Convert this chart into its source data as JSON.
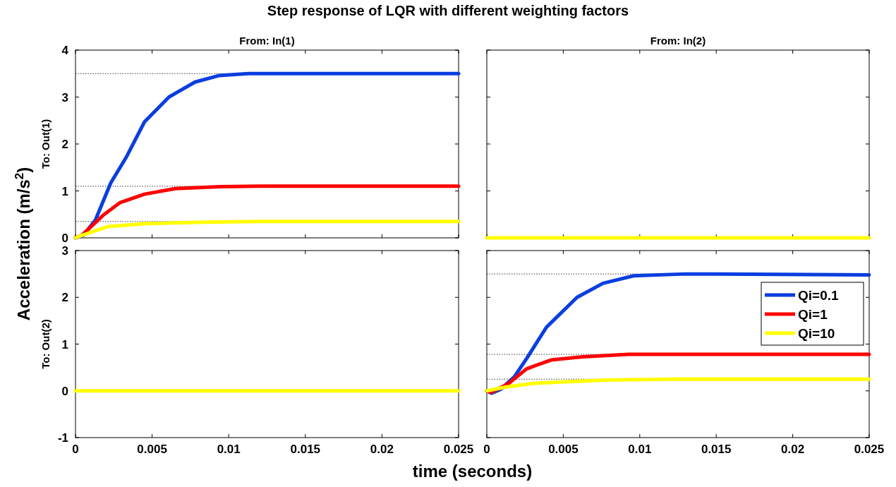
{
  "chart_data": [
    {
      "type": "line",
      "title": "Step response of LQR with different weighting factors",
      "subtitle": "From: In(1)",
      "ylabel": "To: Out(1)",
      "annotations": [
        "Acceleration (m/s$^{2}$)"
      ],
      "xlim": [
        0,
        0.025
      ],
      "xticks": [
        0,
        0.005,
        0.01,
        0.015,
        0.02,
        0.025
      ],
      "ylim": [
        0,
        4
      ],
      "yticks": [
        0,
        1,
        2,
        3,
        4
      ],
      "tick_labels": "y",
      "line_style": "solid",
      "legend": false,
      "ref_lines": [
        {
          "axis": "y",
          "value": 3.5,
          "color": "#000000",
          "line_style": "dotted"
        },
        {
          "axis": "y",
          "value": 1.1,
          "color": "#000000",
          "line_style": "dotted"
        },
        {
          "axis": "y",
          "value": 0.35,
          "color": "#000000",
          "line_style": "dotted"
        }
      ],
      "series": [
        {
          "color": "#0a3ee0",
          "x": [
            0,
            0.0005,
            0.0013,
            0.0023,
            0.0033,
            0.0045,
            0.0061,
            0.0078,
            0.0094,
            0.0113,
            0.015,
            0.025
          ],
          "values": [
            0,
            0.05,
            0.38,
            1.17,
            1.71,
            2.47,
            3.0,
            3.32,
            3.46,
            3.5,
            3.5,
            3.5
          ]
        },
        {
          "color": "#ff0000",
          "x": [
            0,
            0.0004,
            0.0018,
            0.0029,
            0.0045,
            0.0065,
            0.0094,
            0.012,
            0.025
          ],
          "values": [
            0,
            0.05,
            0.48,
            0.75,
            0.93,
            1.05,
            1.09,
            1.1,
            1.1
          ]
        },
        {
          "color": "#ffff00",
          "x": [
            0,
            0.0004,
            0.0021,
            0.0045,
            0.0078,
            0.012,
            0.025
          ],
          "values": [
            0,
            0.05,
            0.24,
            0.3,
            0.33,
            0.35,
            0.35
          ]
        }
      ]
    },
    {
      "type": "line",
      "subtitle": "From: In(2)",
      "xlim": [
        0,
        0.025
      ],
      "xticks": [
        0,
        0.005,
        0.01,
        0.015,
        0.02,
        0.025
      ],
      "ylim": [
        0,
        4
      ],
      "yticks": [
        0,
        1,
        2,
        3,
        4
      ],
      "tick_labels": false,
      "line_style": "solid",
      "legend": false,
      "series": [
        {
          "color": "#ffff00",
          "x": [
            0,
            0.025
          ],
          "values": [
            0,
            0
          ]
        }
      ]
    },
    {
      "type": "line",
      "ylabel": "To: Out(2)",
      "xlabel": "time (seconds)",
      "xlim": [
        0,
        0.025
      ],
      "xticks": [
        0,
        0.005,
        0.01,
        0.015,
        0.02,
        0.025
      ],
      "ylim": [
        -1,
        3
      ],
      "yticks": [
        -1,
        0,
        1,
        2,
        3
      ],
      "line_style": "solid",
      "legend": false,
      "series": [
        {
          "color": "#ffff00",
          "x": [
            0,
            0.025
          ],
          "values": [
            0,
            0
          ]
        }
      ]
    },
    {
      "type": "line",
      "xlim": [
        0,
        0.025
      ],
      "xticks": [
        0,
        0.005,
        0.01,
        0.015,
        0.02,
        0.025
      ],
      "ylim": [
        -1,
        3
      ],
      "yticks": [
        -1,
        0,
        1,
        2,
        3
      ],
      "tick_labels": "x",
      "line_style": "solid",
      "legend": "top right",
      "ref_lines": [
        {
          "axis": "y",
          "value": 2.5,
          "color": "#000000",
          "line_style": "dotted"
        },
        {
          "axis": "y",
          "value": 0.78,
          "color": "#000000",
          "line_style": "dotted"
        },
        {
          "axis": "y",
          "value": 0.25,
          "color": "#000000",
          "line_style": "dotted"
        }
      ],
      "series": [
        {
          "name": "Qi=0.1",
          "color": "#0a3ee0",
          "x": [
            0,
            0.0003,
            0.0009,
            0.0018,
            0.0026,
            0.0039,
            0.0059,
            0.0076,
            0.0096,
            0.013,
            0.025
          ],
          "values": [
            0,
            -0.05,
            0.03,
            0.3,
            0.69,
            1.36,
            2.0,
            2.3,
            2.46,
            2.5,
            2.48
          ]
        },
        {
          "name": "Qi=1",
          "color": "#ff0000",
          "x": [
            0,
            0.0003,
            0.0014,
            0.0026,
            0.0042,
            0.0063,
            0.0093,
            0.025
          ],
          "values": [
            0,
            -0.03,
            0.15,
            0.47,
            0.66,
            0.73,
            0.78,
            0.78
          ]
        },
        {
          "name": "Qi=10",
          "color": "#ffff00",
          "x": [
            0,
            0.0012,
            0.003,
            0.0077,
            0.012,
            0.025
          ],
          "values": [
            0,
            0.08,
            0.16,
            0.23,
            0.25,
            0.25
          ]
        }
      ]
    }
  ]
}
